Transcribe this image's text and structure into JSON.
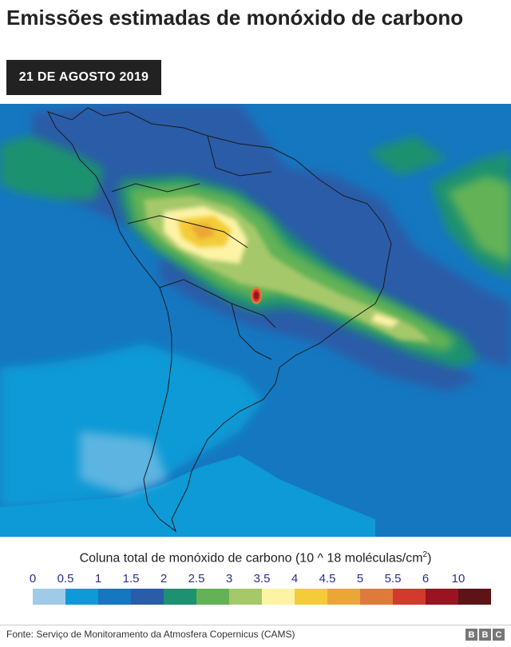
{
  "title": "Emissões estimadas de monóxido de carbono",
  "date": "21 DE AGOSTO 2019",
  "legend": {
    "title_main": "Coluna total de monóxido de carbono (10 ^ 18 moléculas/cm",
    "title_sup": "2",
    "title_end": ")",
    "ticks": [
      "0",
      "0.5",
      "1",
      "1.5",
      "2",
      "2.5",
      "3",
      "3.5",
      "4",
      "4.5",
      "5",
      "5.5",
      "6",
      "10"
    ],
    "colors": [
      "#9fcbe9",
      "#0d9ad6",
      "#1577c0",
      "#2a5ca8",
      "#1e9170",
      "#64b255",
      "#a5c86a",
      "#fdf3a6",
      "#f3cc37",
      "#eba736",
      "#e07a3a",
      "#d23a2e",
      "#9b1221",
      "#5c1416"
    ]
  },
  "source": "Fonte: Serviço de Monitoramento da Atmosfera Copernicus (CAMS)",
  "logo": [
    "B",
    "B",
    "C"
  ]
}
